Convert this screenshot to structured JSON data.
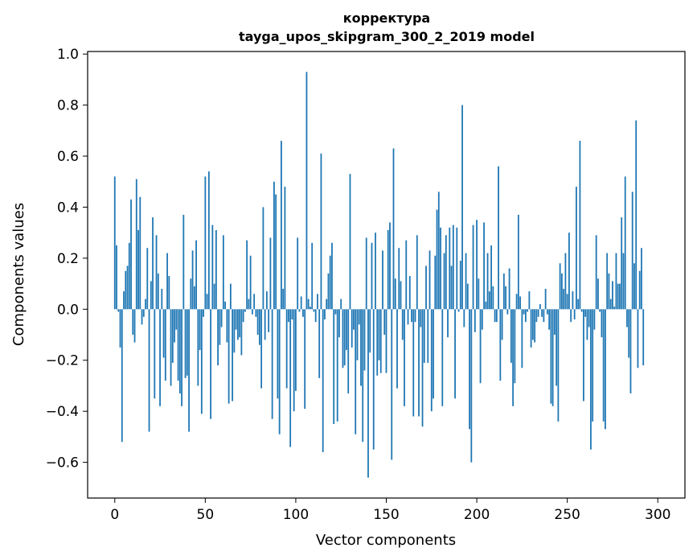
{
  "chart_data": {
    "type": "bar",
    "title": "корректура",
    "subtitle": "tayga_upos_skipgram_300_2_2019 model",
    "xlabel": "Vector components",
    "ylabel": "Components values",
    "xlim": [
      -15,
      315
    ],
    "ylim": [
      -0.74,
      1.01
    ],
    "x_ticks": [
      0,
      50,
      100,
      150,
      200,
      250,
      300
    ],
    "x_tick_labels": [
      "0",
      "50",
      "100",
      "150",
      "200",
      "250",
      "300"
    ],
    "y_ticks": [
      -0.6,
      -0.4,
      -0.2,
      0.0,
      0.2,
      0.4,
      0.6,
      0.8,
      1.0
    ],
    "y_tick_labels": [
      "−0.6",
      "−0.4",
      "−0.2",
      "0.0",
      "0.2",
      "0.4",
      "0.6",
      "0.8",
      "1.0"
    ],
    "bar_color": "#1f77b4",
    "grid": false,
    "values": [
      0.52,
      0.25,
      -0.01,
      -0.15,
      -0.52,
      0.07,
      0.15,
      0.17,
      0.26,
      0.43,
      -0.1,
      -0.13,
      0.51,
      0.31,
      0.44,
      -0.06,
      -0.03,
      0.04,
      0.24,
      -0.48,
      0.11,
      0.36,
      -0.35,
      0.29,
      0.14,
      -0.38,
      0.08,
      -0.19,
      -0.28,
      0.22,
      0.13,
      -0.3,
      -0.21,
      -0.13,
      -0.08,
      -0.28,
      -0.33,
      -0.38,
      0.37,
      -0.27,
      -0.26,
      -0.48,
      0.12,
      0.23,
      0.09,
      0.27,
      -0.3,
      -0.16,
      -0.41,
      -0.03,
      0.52,
      0.06,
      0.54,
      -0.43,
      0.33,
      0.1,
      0.31,
      -0.22,
      -0.14,
      -0.07,
      0.29,
      0.03,
      -0.13,
      -0.37,
      0.1,
      -0.36,
      -0.17,
      -0.08,
      -0.12,
      -0.11,
      -0.18,
      -0.05,
      -0.01,
      0.27,
      0.04,
      0.21,
      -0.02,
      0.06,
      -0.03,
      -0.1,
      -0.14,
      -0.31,
      0.4,
      -0.12,
      0.07,
      -0.09,
      0.28,
      -0.43,
      0.5,
      0.45,
      -0.35,
      -0.49,
      0.66,
      0.08,
      0.48,
      -0.31,
      -0.05,
      -0.54,
      -0.04,
      -0.4,
      -0.32,
      0.28,
      -0.01,
      0.05,
      -0.03,
      -0.39,
      0.93,
      0.04,
      0.01,
      0.26,
      -0.01,
      -0.05,
      0.06,
      -0.27,
      0.61,
      -0.56,
      -0.04,
      0.04,
      0.14,
      0.21,
      0.26,
      -0.45,
      -0.02,
      -0.44,
      -0.11,
      0.04,
      -0.23,
      -0.22,
      -0.16,
      -0.33,
      0.53,
      -0.15,
      -0.08,
      -0.49,
      -0.2,
      -0.06,
      -0.3,
      -0.52,
      -0.24,
      0.28,
      -0.66,
      -0.17,
      0.26,
      -0.55,
      0.3,
      -0.26,
      -0.2,
      -0.25,
      0.23,
      -0.1,
      -0.25,
      0.31,
      0.34,
      -0.59,
      0.63,
      0.12,
      -0.31,
      0.24,
      0.11,
      -0.12,
      -0.38,
      0.27,
      -0.06,
      0.13,
      -0.05,
      -0.42,
      -0.05,
      0.29,
      -0.42,
      -0.07,
      -0.46,
      -0.21,
      0.17,
      -0.21,
      0.23,
      -0.4,
      -0.35,
      0.21,
      0.39,
      0.46,
      0.32,
      -0.38,
      0.22,
      0.29,
      -0.11,
      0.32,
      0.17,
      0.33,
      -0.35,
      0.32,
      -0.01,
      0.19,
      0.8,
      -0.07,
      0.22,
      0.1,
      -0.47,
      -0.6,
      0.33,
      -0.09,
      0.35,
      0.12,
      -0.29,
      -0.08,
      0.34,
      0.03,
      0.22,
      0.07,
      0.25,
      0.09,
      -0.05,
      -0.05,
      0.56,
      -0.28,
      -0.12,
      0.14,
      0.09,
      -0.02,
      0.16,
      -0.21,
      -0.38,
      -0.29,
      0.06,
      0.37,
      0.05,
      -0.23,
      -0.02,
      -0.05,
      -0.01,
      0.07,
      -0.15,
      -0.12,
      -0.13,
      -0.05,
      -0.03,
      0.02,
      -0.03,
      -0.05,
      0.08,
      -0.02,
      -0.08,
      -0.37,
      -0.38,
      -0.1,
      -0.3,
      -0.44,
      0.18,
      0.14,
      0.08,
      0.22,
      0.06,
      0.3,
      -0.05,
      0.07,
      -0.04,
      0.48,
      0.04,
      0.66,
      -0.01,
      -0.36,
      -0.03,
      -0.12,
      -0.07,
      -0.55,
      -0.44,
      -0.08,
      0.29,
      0.12,
      -0.01,
      -0.11,
      -0.44,
      -0.47,
      0.22,
      0.14,
      0.04,
      0.11,
      0.01,
      0.22,
      0.1,
      0.1,
      0.36,
      0.22,
      0.52,
      -0.07,
      -0.19,
      -0.33,
      0.46,
      0.18,
      0.74,
      -0.23,
      0.15,
      0.24,
      -0.22
    ]
  }
}
